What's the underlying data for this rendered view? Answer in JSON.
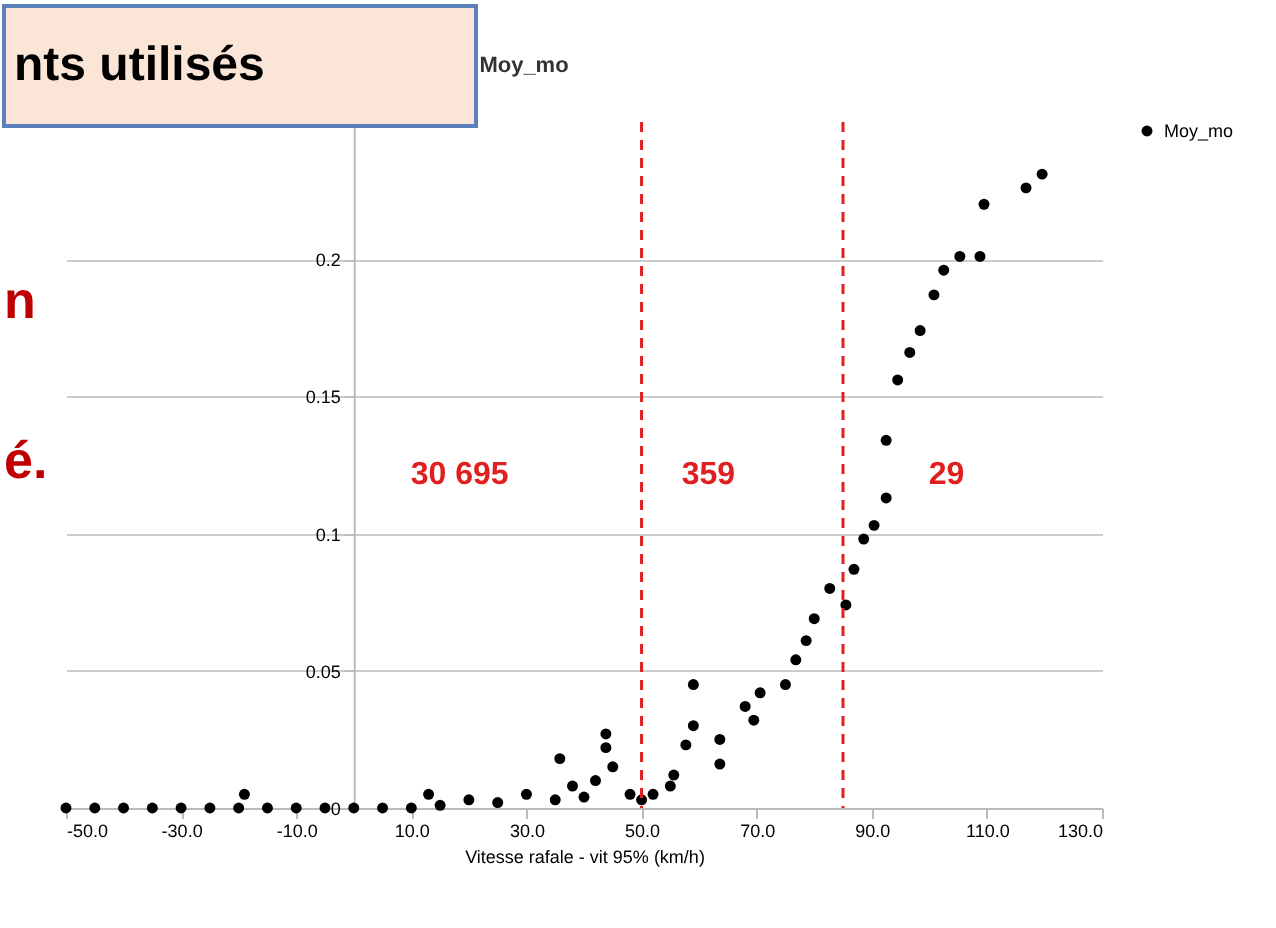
{
  "chart_data": {
    "type": "scatter",
    "title": "Moy_mo",
    "xlabel": "Vitesse rafale -  vit 95% (km/h)",
    "xlim": [
      -50,
      130
    ],
    "xticks": [
      {
        "value": -50,
        "label": "-50.0"
      },
      {
        "value": -30,
        "label": "-30.0"
      },
      {
        "value": -10,
        "label": "-10.0"
      },
      {
        "value": 10,
        "label": "10.0"
      },
      {
        "value": 30,
        "label": "30.0"
      },
      {
        "value": 50,
        "label": "50.0"
      },
      {
        "value": 70,
        "label": "70.0"
      },
      {
        "value": 90,
        "label": "90.0"
      },
      {
        "value": 110,
        "label": "110.0"
      },
      {
        "value": 130,
        "label": "130.0"
      }
    ],
    "ylim": [
      0,
      0.25
    ],
    "yticks": [
      0,
      0.05,
      0.1,
      0.15,
      0.2
    ],
    "grid": "y",
    "legend": "right",
    "marker": "circle",
    "series": [
      {
        "name": "Moy_mo",
        "color": "#000000",
        "x": [
          -50,
          -45,
          -40,
          -35,
          -30,
          -25,
          -20,
          -19,
          -15,
          -10,
          -5,
          0,
          5,
          10,
          13,
          15,
          20,
          25,
          30,
          35,
          35.8,
          38,
          40,
          42,
          43.8,
          43.8,
          45,
          48,
          50,
          52,
          55,
          55.6,
          57.7,
          59,
          59,
          63.6,
          63.6,
          68,
          69.5,
          70.6,
          75,
          76.8,
          78.6,
          80,
          82.7,
          85.5,
          86.9,
          88.6,
          90.4,
          92.5,
          92.5,
          94.5,
          96.6,
          98.4,
          100.8,
          102.5,
          105.3,
          108.8,
          109.5,
          116.8,
          119.6
        ],
        "values": [
          0,
          0,
          0,
          0,
          0,
          0,
          0,
          0.005,
          0,
          0,
          0,
          0,
          0,
          0,
          0.005,
          0.001,
          0.003,
          0.002,
          0.005,
          0.003,
          0.018,
          0.008,
          0.004,
          0.01,
          0.027,
          0.022,
          0.015,
          0.005,
          0.003,
          0.005,
          0.008,
          0.012,
          0.023,
          0.045,
          0.03,
          0.025,
          0.016,
          0.037,
          0.032,
          0.042,
          0.045,
          0.054,
          0.061,
          0.069,
          0.08,
          0.074,
          0.087,
          0.098,
          0.103,
          0.113,
          0.134,
          0.156,
          0.166,
          0.174,
          0.187,
          0.196,
          0.201,
          0.201,
          0.22,
          0.226,
          0.231
        ]
      }
    ],
    "ref_lines": [
      {
        "axis": "x",
        "value": 50,
        "color": "#e02020",
        "line_style": "dashed"
      },
      {
        "axis": "x",
        "value": 85,
        "color": "#e02020",
        "line_style": "dashed"
      }
    ],
    "annotations": [
      "30 695",
      "359",
      "29",
      "nts utilisés",
      "n",
      "é."
    ]
  }
}
